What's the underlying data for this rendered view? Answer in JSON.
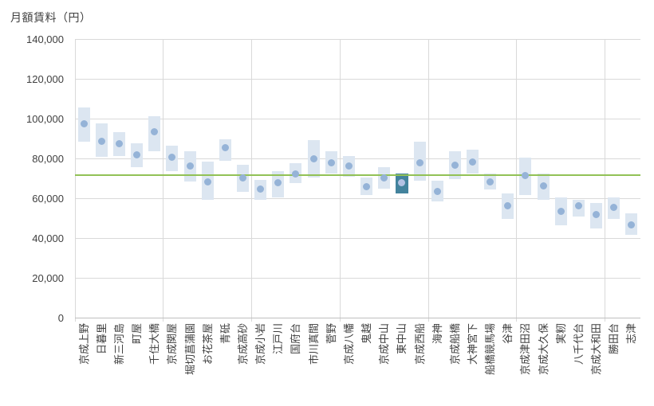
{
  "chart_data": {
    "type": "bar",
    "subtype": "floating-range-bars-with-median-markers",
    "title": "月額賃料（円）",
    "xlabel": "",
    "ylabel": "月額賃料（円）",
    "ylim": [
      0,
      140000
    ],
    "ytick_step": 20000,
    "ytick_labels": [
      "0",
      "20,000",
      "40,000",
      "60,000",
      "80,000",
      "100,000",
      "120,000",
      "140,000"
    ],
    "grid": true,
    "legend": "none",
    "x_labels_rotation": "vertical-bottom-to-top",
    "vertical_gridline_every_n_categories": 5,
    "reference_line": {
      "value": 71800,
      "color": "#92C156"
    },
    "highlight": {
      "category": "東中山",
      "bar_color": "#43839D",
      "marker_color": "#B3C2E3"
    },
    "colors": {
      "bar": "#DCE6F1",
      "marker": "#95B3D7",
      "grid": "#D9D9D9",
      "axis": "#BFBFBF",
      "text": "#3F3F3F",
      "background": "#FFFFFF"
    },
    "categories": [
      "京成上野",
      "日暮里",
      "新三河島",
      "町屋",
      "千住大橋",
      "京成関屋",
      "堀切菖蒲園",
      "お花茶屋",
      "青砥",
      "京成高砂",
      "京成小岩",
      "江戸川",
      "国府台",
      "市川真間",
      "菅野",
      "京成八幡",
      "鬼越",
      "京成中山",
      "東中山",
      "京成西船",
      "海神",
      "京成船橋",
      "大神宮下",
      "船橋競馬場",
      "谷津",
      "京成津田沼",
      "京成大久保",
      "実籾",
      "八千代台",
      "京成大和田",
      "勝田台",
      "志津"
    ],
    "stations": [
      {
        "name": "京成上野",
        "low": 88500,
        "high": 106000,
        "value": 97500
      },
      {
        "name": "日暮里",
        "low": 81000,
        "high": 98000,
        "value": 89000
      },
      {
        "name": "新三河島",
        "low": 81500,
        "high": 93500,
        "value": 87500
      },
      {
        "name": "町屋",
        "low": 76000,
        "high": 88000,
        "value": 82000
      },
      {
        "name": "千住大橋",
        "low": 84000,
        "high": 101500,
        "value": 93500
      },
      {
        "name": "京成関屋",
        "low": 74000,
        "high": 86500,
        "value": 81000
      },
      {
        "name": "堀切菖蒲園",
        "low": 68500,
        "high": 84000,
        "value": 76500
      },
      {
        "name": "お花茶屋",
        "low": 59500,
        "high": 78500,
        "value": 68500
      },
      {
        "name": "青砥",
        "low": 79000,
        "high": 90000,
        "value": 85500
      },
      {
        "name": "京成高砂",
        "low": 63500,
        "high": 77000,
        "value": 70500
      },
      {
        "name": "京成小岩",
        "low": 59500,
        "high": 69500,
        "value": 65000
      },
      {
        "name": "江戸川",
        "low": 60500,
        "high": 74000,
        "value": 68000
      },
      {
        "name": "国府台",
        "low": 68000,
        "high": 78000,
        "value": 72500
      },
      {
        "name": "市川真間",
        "low": 70500,
        "high": 89500,
        "value": 80000
      },
      {
        "name": "菅野",
        "low": 72500,
        "high": 84000,
        "value": 78000
      },
      {
        "name": "京成八幡",
        "low": 71000,
        "high": 81500,
        "value": 76500
      },
      {
        "name": "鬼越",
        "low": 62000,
        "high": 70500,
        "value": 66000
      },
      {
        "name": "京成中山",
        "low": 65000,
        "high": 76000,
        "value": 70500
      },
      {
        "name": "東中山",
        "low": 62500,
        "high": 72500,
        "value": 68000
      },
      {
        "name": "京成西船",
        "low": 69000,
        "high": 88500,
        "value": 78000
      },
      {
        "name": "海神",
        "low": 58500,
        "high": 69000,
        "value": 63500
      },
      {
        "name": "京成船橋",
        "low": 70000,
        "high": 84000,
        "value": 77000
      },
      {
        "name": "大神宮下",
        "low": 72500,
        "high": 84500,
        "value": 78500
      },
      {
        "name": "船橋競馬場",
        "low": 64500,
        "high": 72500,
        "value": 68500
      },
      {
        "name": "谷津",
        "low": 50000,
        "high": 62500,
        "value": 56500
      },
      {
        "name": "京成津田沼",
        "low": 62000,
        "high": 80500,
        "value": 71500
      },
      {
        "name": "京成大久保",
        "low": 59500,
        "high": 72500,
        "value": 66500
      },
      {
        "name": "実籾",
        "low": 46500,
        "high": 60500,
        "value": 53500
      },
      {
        "name": "八千代台",
        "low": 51000,
        "high": 59500,
        "value": 56500
      },
      {
        "name": "京成大和田",
        "low": 45000,
        "high": 58000,
        "value": 52000
      },
      {
        "name": "勝田台",
        "low": 50000,
        "high": 60500,
        "value": 55500
      },
      {
        "name": "志津",
        "low": 42000,
        "high": 52500,
        "value": 47000
      }
    ]
  }
}
